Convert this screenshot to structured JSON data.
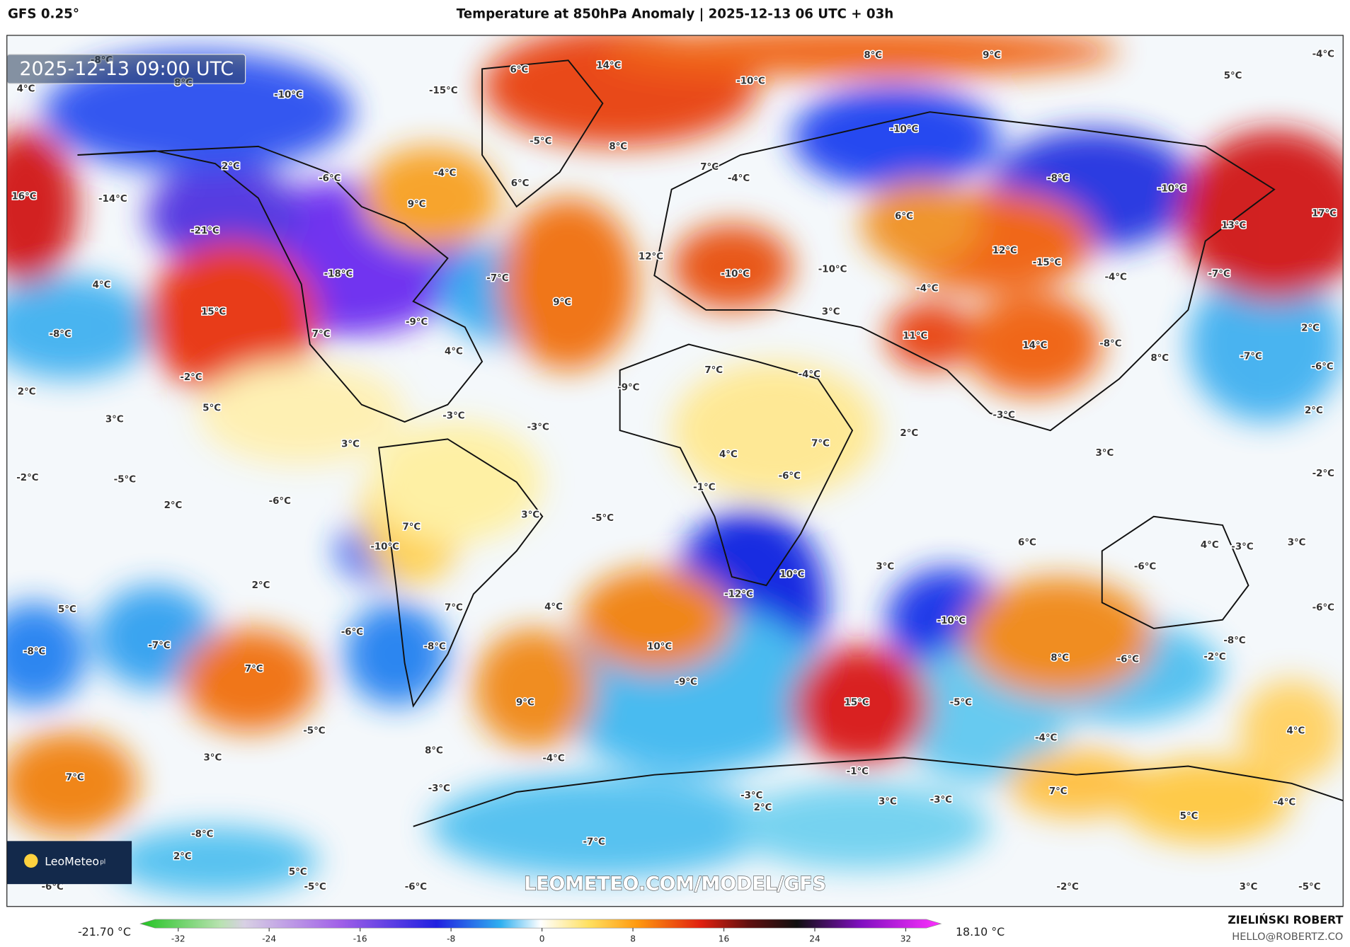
{
  "header": {
    "model": "GFS 0.25°",
    "title": "Temperature at 850hPa Anomaly | 2025-12-13 06 UTC + 03h"
  },
  "map": {
    "timestamp": "2025-12-13 09:00 UTC",
    "watermark": "LEOMETEO.COM/MODEL/GFS",
    "logo": "LeoMeteo",
    "logo_suffix": "pl",
    "labels": [
      "4°C",
      "-8°C",
      "8°C",
      "-10°C",
      "-15°C",
      "6°C",
      "14°C",
      "-10°C",
      "8°C",
      "9°C",
      "5°C",
      "-4°C",
      "-10°C",
      "-5°C",
      "8°C",
      "2°C",
      "-6°C",
      "-4°C",
      "6°C",
      "7°C",
      "-4°C",
      "-8°C",
      "-10°C",
      "16°C",
      "-14°C",
      "9°C",
      "-21°C",
      "6°C",
      "17°C",
      "13°C",
      "12°C",
      "-15°C",
      "12°C",
      "-18°C",
      "-7°C",
      "-10°C",
      "-10°C",
      "-4°C",
      "-4°C",
      "-7°C",
      "4°C",
      "9°C",
      "15°C",
      "3°C",
      "-9°C",
      "-8°C",
      "7°C",
      "11°C",
      "-8°C",
      "14°C",
      "2°C",
      "4°C",
      "-7°C",
      "8°C",
      "-2°C",
      "7°C",
      "-4°C",
      "-6°C",
      "2°C",
      "-9°C",
      "5°C",
      "3°C",
      "-3°C",
      "-3°C",
      "2°C",
      "-3°C",
      "2°C",
      "7°C",
      "3°C",
      "4°C",
      "3°C",
      "-2°C",
      "-5°C",
      "-6°C",
      "-2°C",
      "-1°C",
      "-6°C",
      "2°C",
      "3°C",
      "-5°C",
      "7°C",
      "6°C",
      "4°C",
      "-3°C",
      "3°C",
      "-10°C",
      "-6°C",
      "3°C",
      "10°C",
      "2°C",
      "-12°C",
      "4°C",
      "5°C",
      "7°C",
      "-10°C",
      "-6°C",
      "-6°C",
      "-7°C",
      "10°C",
      "-8°C",
      "-8°C",
      "-8°C",
      "8°C",
      "-6°C",
      "-2°C",
      "7°C",
      "-9°C",
      "9°C",
      "15°C",
      "-5°C",
      "-5°C",
      "4°C",
      "-4°C",
      "8°C",
      "3°C",
      "-4°C",
      "-1°C",
      "7°C",
      "-3°C",
      "7°C",
      "-3°C",
      "2°C",
      "3°C",
      "-3°C",
      "-4°C",
      "5°C",
      "-8°C",
      "-7°C",
      "2°C",
      "5°C",
      "-6°C",
      "-5°C",
      "-6°C",
      "-2°C",
      "3°C",
      "-5°C"
    ]
  },
  "colorbar": {
    "min_label": "-21.70 °C",
    "max_label": "18.10 °C",
    "ticks": [
      -32,
      -24,
      -16,
      -8,
      0,
      8,
      16,
      24,
      32
    ]
  },
  "footer": {
    "author": "ZIELIŃSKI ROBERT",
    "email": "HELLO@ROBERTZ.CO"
  }
}
